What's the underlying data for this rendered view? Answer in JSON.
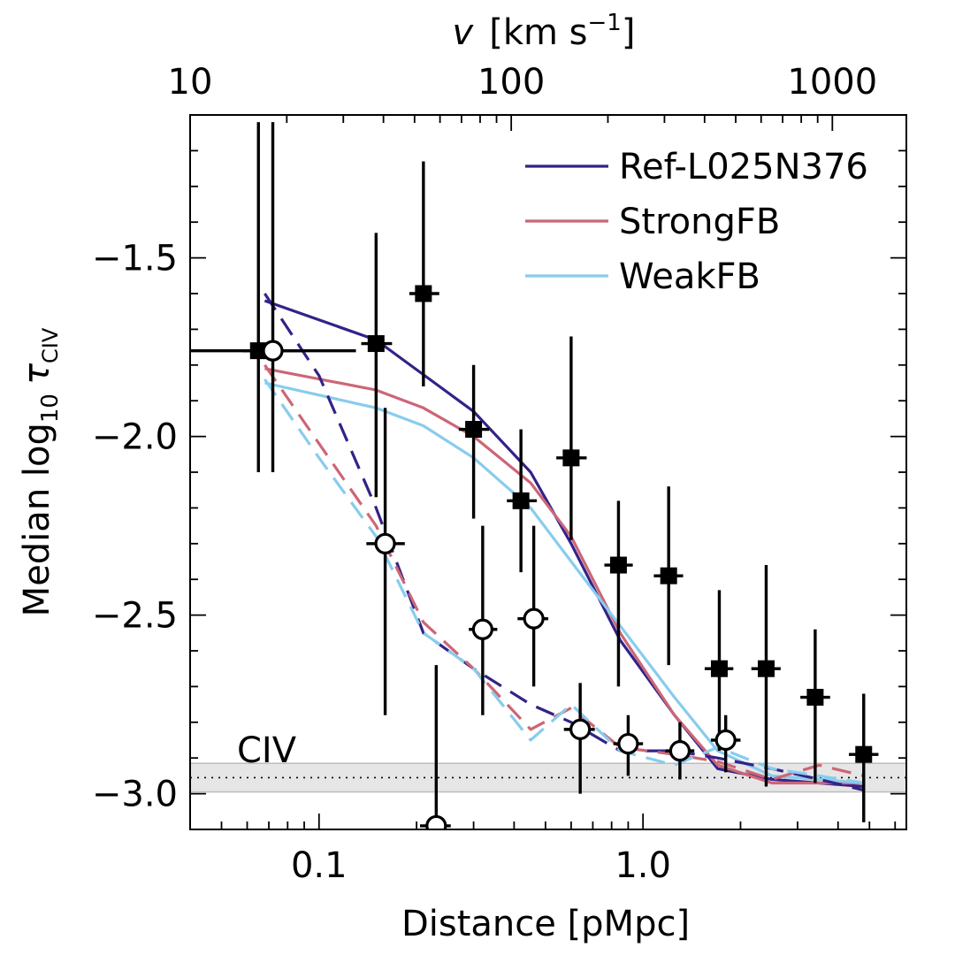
{
  "chart_data": {
    "type": "scatter",
    "title": "",
    "xlabel": "Distance [pMpc]",
    "ylabel_parts": {
      "main": "Median log",
      "sub1": "10",
      "tau": "τ",
      "sub2": "CIV"
    },
    "top_xlabel_parts": {
      "v": "v",
      "unit": "[km s",
      "sup": "−1",
      "close": "]"
    },
    "xscale": "log",
    "xlim": [
      0.04,
      6.5
    ],
    "ylim": [
      -3.1,
      -1.1
    ],
    "top_xlim": [
      10,
      1700
    ],
    "x_ticks": [
      {
        "value": 0.1,
        "label": "0.1"
      },
      {
        "value": 1.0,
        "label": "1.0"
      }
    ],
    "y_ticks": [
      {
        "value": -1.5,
        "label": "−1.5"
      },
      {
        "value": -2.0,
        "label": "−2.0"
      },
      {
        "value": -2.5,
        "label": "−2.5"
      },
      {
        "value": -3.0,
        "label": "−3.0"
      }
    ],
    "top_ticks": [
      {
        "value": 10,
        "label": "10"
      },
      {
        "value": 100,
        "label": "100"
      },
      {
        "value": 1000,
        "label": "1000"
      }
    ],
    "annotation": "CIV",
    "noise_band": {
      "y": -2.955,
      "lower": -2.995,
      "upper": -2.915
    },
    "legend_position": "top-right",
    "series": [
      {
        "name": "Ref-L025N376",
        "style": "solid",
        "color": "#332288",
        "x": [
          0.068,
          0.15,
          0.3,
          0.45,
          0.6,
          0.85,
          1.25,
          1.7,
          2.5,
          3.5,
          4.8
        ],
        "y": [
          -1.62,
          -1.73,
          -1.93,
          -2.1,
          -2.3,
          -2.57,
          -2.78,
          -2.93,
          -2.96,
          -2.97,
          -2.98
        ]
      },
      {
        "name": "StrongFB",
        "style": "solid",
        "color": "#CC6677",
        "x": [
          0.068,
          0.15,
          0.21,
          0.3,
          0.45,
          0.6,
          0.85,
          1.25,
          1.7,
          2.5,
          3.5,
          4.8
        ],
        "y": [
          -1.81,
          -1.87,
          -1.92,
          -2.0,
          -2.13,
          -2.28,
          -2.55,
          -2.78,
          -2.92,
          -2.97,
          -2.97,
          -2.97
        ]
      },
      {
        "name": "WeakFB",
        "style": "solid",
        "color": "#88CCEE",
        "x": [
          0.068,
          0.15,
          0.21,
          0.3,
          0.45,
          0.6,
          0.85,
          1.25,
          1.7,
          2.5,
          3.5,
          4.8
        ],
        "y": [
          -1.85,
          -1.92,
          -1.97,
          -2.06,
          -2.2,
          -2.35,
          -2.53,
          -2.73,
          -2.88,
          -2.95,
          -2.96,
          -2.97
        ]
      },
      {
        "name": "Ref-L025N376 (dashed)",
        "style": "dashed",
        "color": "#332288",
        "x": [
          0.068,
          0.1,
          0.15,
          0.21,
          0.3,
          0.45,
          0.6,
          0.85,
          1.25,
          1.7,
          2.5,
          3.5,
          4.8
        ],
        "y": [
          -1.6,
          -1.83,
          -2.2,
          -2.55,
          -2.65,
          -2.75,
          -2.8,
          -2.88,
          -2.88,
          -2.9,
          -2.93,
          -2.96,
          -2.99
        ]
      },
      {
        "name": "StrongFB (dashed)",
        "style": "dashed",
        "color": "#CC6677",
        "x": [
          0.068,
          0.1,
          0.15,
          0.21,
          0.3,
          0.45,
          0.6,
          0.85,
          1.25,
          1.7,
          2.5,
          3.5,
          4.8
        ],
        "y": [
          -1.8,
          -2.02,
          -2.25,
          -2.52,
          -2.65,
          -2.82,
          -2.76,
          -2.87,
          -2.89,
          -2.91,
          -2.96,
          -2.92,
          -2.95
        ]
      },
      {
        "name": "WeakFB (dashed)",
        "style": "dashed",
        "color": "#88CCEE",
        "x": [
          0.068,
          0.1,
          0.15,
          0.21,
          0.3,
          0.45,
          0.6,
          0.85,
          1.25,
          1.7,
          2.5,
          3.5,
          4.8
        ],
        "y": [
          -1.84,
          -2.06,
          -2.28,
          -2.55,
          -2.65,
          -2.85,
          -2.75,
          -2.88,
          -2.92,
          -2.87,
          -2.93,
          -2.95,
          -2.97
        ]
      }
    ],
    "filled_points": [
      {
        "x": 0.065,
        "y": -1.76,
        "xlo": 0.04,
        "xhi": 0.13,
        "ylo": -2.1,
        "yhi": -1.12
      },
      {
        "x": 0.15,
        "y": -1.74,
        "xlo": 0.135,
        "xhi": 0.168,
        "ylo": -2.17,
        "yhi": -1.43
      },
      {
        "x": 0.21,
        "y": -1.6,
        "xlo": 0.19,
        "xhi": 0.235,
        "ylo": -1.86,
        "yhi": -1.23
      },
      {
        "x": 0.3,
        "y": -1.98,
        "xlo": 0.27,
        "xhi": 0.335,
        "ylo": -2.23,
        "yhi": -1.8
      },
      {
        "x": 0.42,
        "y": -2.18,
        "xlo": 0.38,
        "xhi": 0.47,
        "ylo": -2.38,
        "yhi": -1.98
      },
      {
        "x": 0.6,
        "y": -2.06,
        "xlo": 0.54,
        "xhi": 0.67,
        "ylo": -2.29,
        "yhi": -1.72
      },
      {
        "x": 0.84,
        "y": -2.36,
        "xlo": 0.76,
        "xhi": 0.93,
        "ylo": -2.7,
        "yhi": -2.18
      },
      {
        "x": 1.2,
        "y": -2.39,
        "xlo": 1.08,
        "xhi": 1.33,
        "ylo": -2.64,
        "yhi": -2.14
      },
      {
        "x": 1.72,
        "y": -2.65,
        "xlo": 1.55,
        "xhi": 1.9,
        "ylo": -2.88,
        "yhi": -2.43
      },
      {
        "x": 2.4,
        "y": -2.65,
        "xlo": 2.16,
        "xhi": 2.66,
        "ylo": -2.98,
        "yhi": -2.36
      },
      {
        "x": 3.4,
        "y": -2.73,
        "xlo": 3.06,
        "xhi": 3.78,
        "ylo": -2.97,
        "yhi": -2.54
      },
      {
        "x": 4.8,
        "y": -2.89,
        "xlo": 4.32,
        "xhi": 5.33,
        "ylo": -3.08,
        "yhi": -2.72
      }
    ],
    "open_points": [
      {
        "x": 0.072,
        "y": -1.76,
        "xlo": 0.058,
        "xhi": 0.089,
        "ylo": -2.1,
        "yhi": -1.12
      },
      {
        "x": 0.16,
        "y": -2.3,
        "xlo": 0.14,
        "xhi": 0.184,
        "ylo": -2.78,
        "yhi": -1.92
      },
      {
        "x": 0.23,
        "y": -3.09,
        "xlo": 0.205,
        "xhi": 0.255,
        "ylo": -3.1,
        "yhi": -2.64
      },
      {
        "x": 0.32,
        "y": -2.54,
        "xlo": 0.29,
        "xhi": 0.355,
        "ylo": -2.78,
        "yhi": -2.25
      },
      {
        "x": 0.46,
        "y": -2.51,
        "xlo": 0.41,
        "xhi": 0.51,
        "ylo": -2.7,
        "yhi": -2.25
      },
      {
        "x": 0.64,
        "y": -2.82,
        "xlo": 0.57,
        "xhi": 0.71,
        "ylo": -3.0,
        "yhi": -2.69
      },
      {
        "x": 0.9,
        "y": -2.86,
        "xlo": 0.81,
        "xhi": 1.0,
        "ylo": -2.95,
        "yhi": -2.78
      },
      {
        "x": 1.3,
        "y": -2.88,
        "xlo": 1.17,
        "xhi": 1.44,
        "ylo": -2.96,
        "yhi": -2.8
      },
      {
        "x": 1.8,
        "y": -2.85,
        "xlo": 1.62,
        "xhi": 2.0,
        "ylo": -2.94,
        "yhi": -2.78
      }
    ]
  }
}
